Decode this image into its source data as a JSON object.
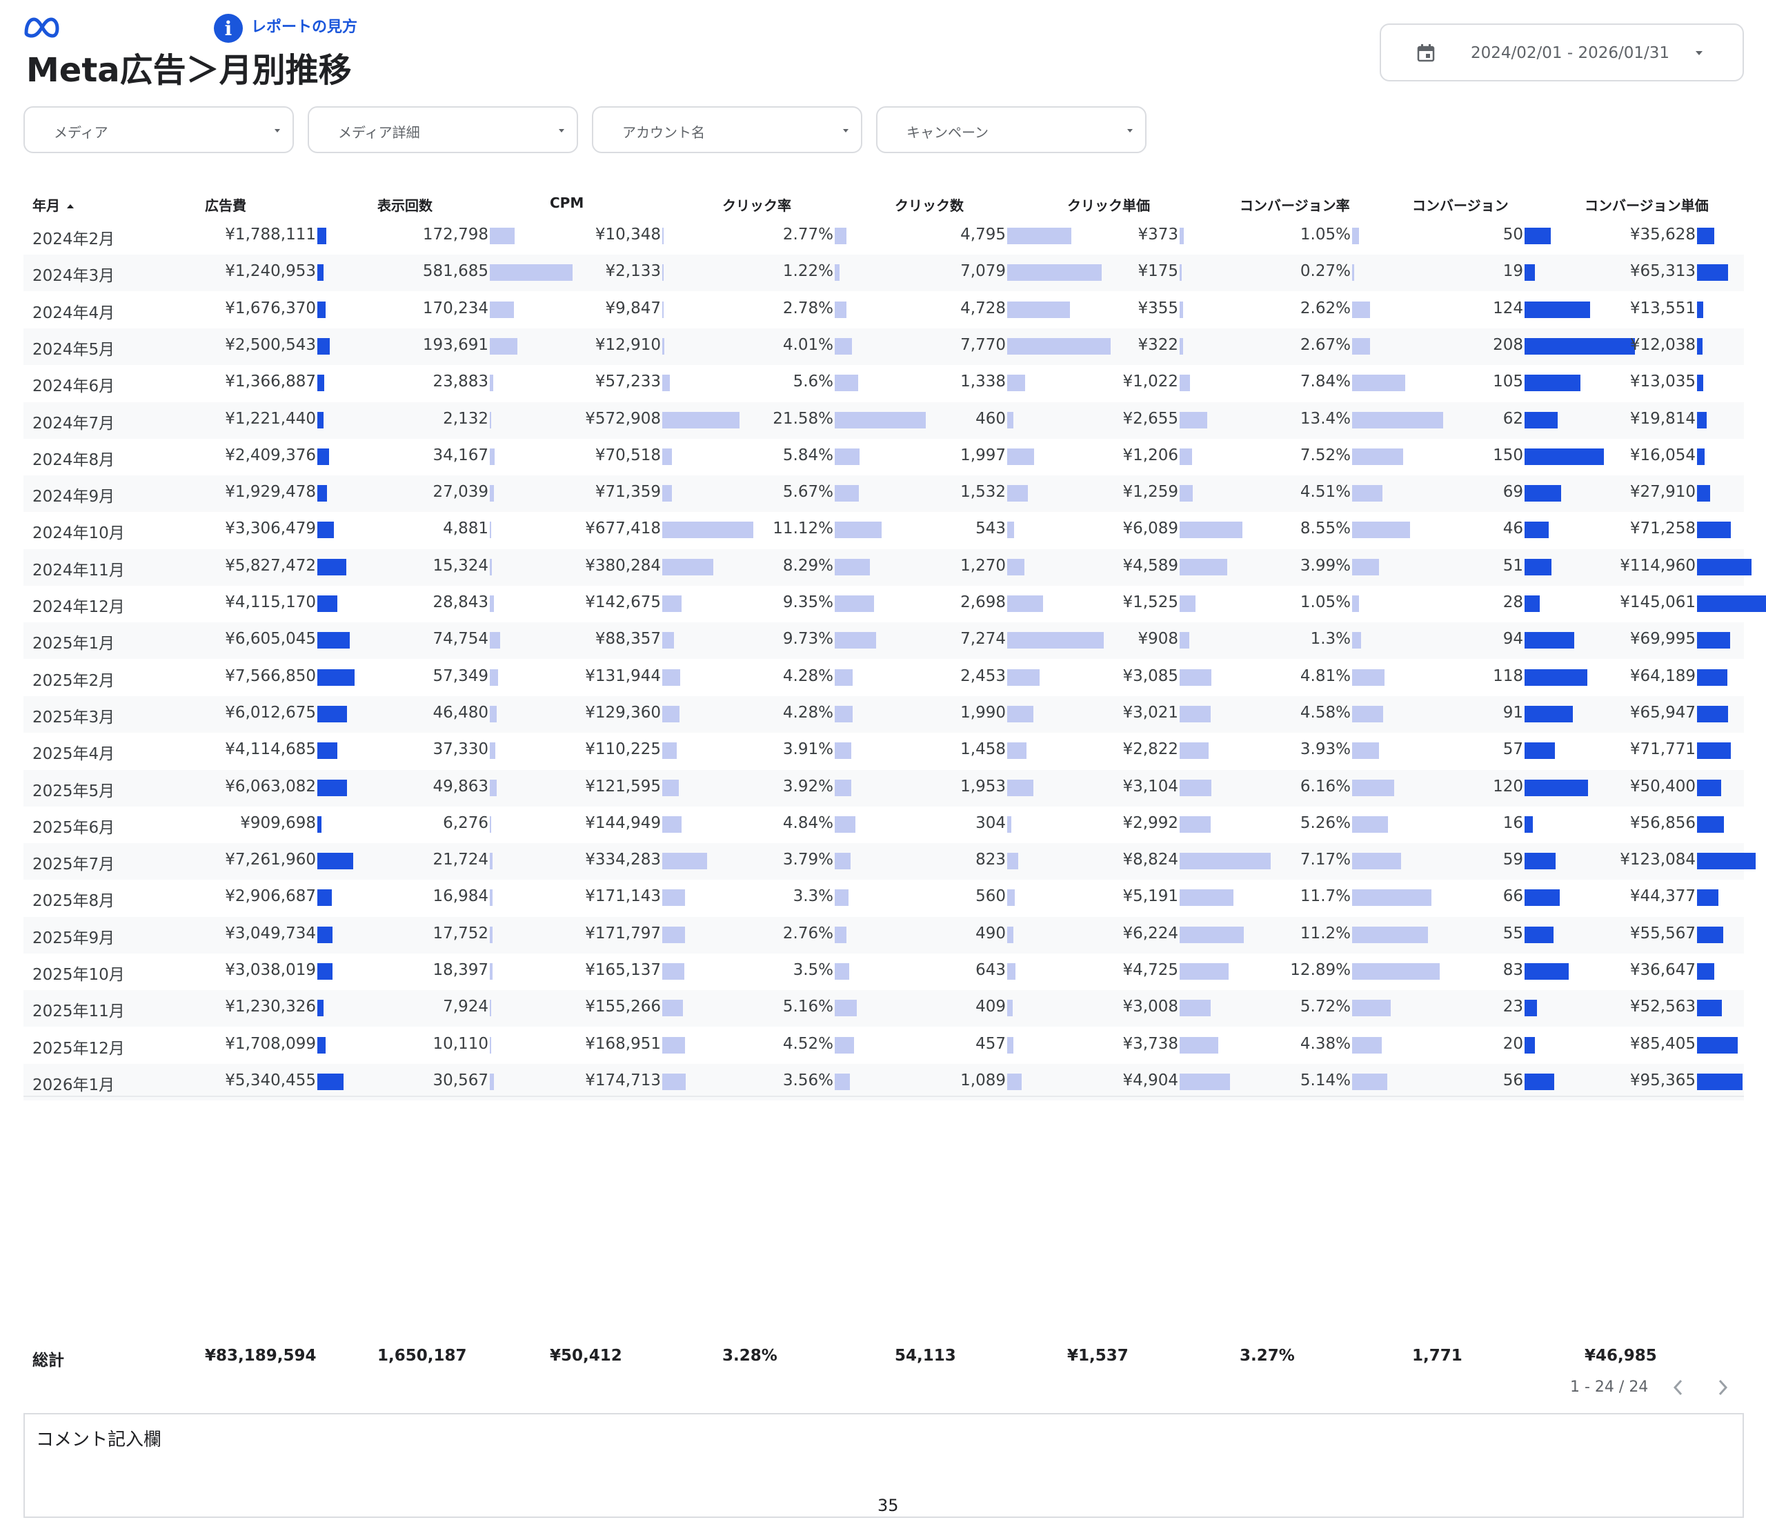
{
  "header": {
    "title": "Meta広告＞月別推移",
    "help_label": "レポートの見方",
    "help_icon": "info-icon",
    "logo": "meta-logo"
  },
  "date_range": {
    "value": "2024/02/01 - 2026/01/31",
    "icon": "calendar-icon"
  },
  "filters": [
    {
      "label": "メディア"
    },
    {
      "label": "メディア詳細"
    },
    {
      "label": "アカウント名"
    },
    {
      "label": "キャンペーン"
    }
  ],
  "table": {
    "columns": [
      "年月",
      "広告費",
      "表示回数",
      "CPM",
      "クリック率",
      "クリック数",
      "クリック単価",
      "コンバージョン率",
      "コンバージョン",
      "コンバージョン単価"
    ],
    "sort": {
      "column": "年月",
      "direction": "ascending"
    },
    "bar_colors": {
      "light": "#c1caf2",
      "dark": "#1a4fe0"
    },
    "rows": [
      [
        "2024年2月",
        "¥1,788,111",
        "172,798",
        "¥10,348",
        "2.77%",
        "4,795",
        "¥373",
        "1.05%",
        "50",
        "¥35,628"
      ],
      [
        "2024年3月",
        "¥1,240,953",
        "581,685",
        "¥2,133",
        "1.22%",
        "7,079",
        "¥175",
        "0.27%",
        "19",
        "¥65,313"
      ],
      [
        "2024年4月",
        "¥1,676,370",
        "170,234",
        "¥9,847",
        "2.78%",
        "4,728",
        "¥355",
        "2.62%",
        "124",
        "¥13,551"
      ],
      [
        "2024年5月",
        "¥2,500,543",
        "193,691",
        "¥12,910",
        "4.01%",
        "7,770",
        "¥322",
        "2.67%",
        "208",
        "¥12,038"
      ],
      [
        "2024年6月",
        "¥1,366,887",
        "23,883",
        "¥57,233",
        "5.6%",
        "1,338",
        "¥1,022",
        "7.84%",
        "105",
        "¥13,035"
      ],
      [
        "2024年7月",
        "¥1,221,440",
        "2,132",
        "¥572,908",
        "21.58%",
        "460",
        "¥2,655",
        "13.4%",
        "62",
        "¥19,814"
      ],
      [
        "2024年8月",
        "¥2,409,376",
        "34,167",
        "¥70,518",
        "5.84%",
        "1,997",
        "¥1,206",
        "7.52%",
        "150",
        "¥16,054"
      ],
      [
        "2024年9月",
        "¥1,929,478",
        "27,039",
        "¥71,359",
        "5.67%",
        "1,532",
        "¥1,259",
        "4.51%",
        "69",
        "¥27,910"
      ],
      [
        "2024年10月",
        "¥3,306,479",
        "4,881",
        "¥677,418",
        "11.12%",
        "543",
        "¥6,089",
        "8.55%",
        "46",
        "¥71,258"
      ],
      [
        "2024年11月",
        "¥5,827,472",
        "15,324",
        "¥380,284",
        "8.29%",
        "1,270",
        "¥4,589",
        "3.99%",
        "51",
        "¥114,960"
      ],
      [
        "2024年12月",
        "¥4,115,170",
        "28,843",
        "¥142,675",
        "9.35%",
        "2,698",
        "¥1,525",
        "1.05%",
        "28",
        "¥145,061"
      ],
      [
        "2025年1月",
        "¥6,605,045",
        "74,754",
        "¥88,357",
        "9.73%",
        "7,274",
        "¥908",
        "1.3%",
        "94",
        "¥69,995"
      ],
      [
        "2025年2月",
        "¥7,566,850",
        "57,349",
        "¥131,944",
        "4.28%",
        "2,453",
        "¥3,085",
        "4.81%",
        "118",
        "¥64,189"
      ],
      [
        "2025年3月",
        "¥6,012,675",
        "46,480",
        "¥129,360",
        "4.28%",
        "1,990",
        "¥3,021",
        "4.58%",
        "91",
        "¥65,947"
      ],
      [
        "2025年4月",
        "¥4,114,685",
        "37,330",
        "¥110,225",
        "3.91%",
        "1,458",
        "¥2,822",
        "3.93%",
        "57",
        "¥71,771"
      ],
      [
        "2025年5月",
        "¥6,063,082",
        "49,863",
        "¥121,595",
        "3.92%",
        "1,953",
        "¥3,104",
        "6.16%",
        "120",
        "¥50,400"
      ],
      [
        "2025年6月",
        "¥909,698",
        "6,276",
        "¥144,949",
        "4.84%",
        "304",
        "¥2,992",
        "5.26%",
        "16",
        "¥56,856"
      ],
      [
        "2025年7月",
        "¥7,261,960",
        "21,724",
        "¥334,283",
        "3.79%",
        "823",
        "¥8,824",
        "7.17%",
        "59",
        "¥123,084"
      ],
      [
        "2025年8月",
        "¥2,906,687",
        "16,984",
        "¥171,143",
        "3.3%",
        "560",
        "¥5,191",
        "11.7%",
        "66",
        "¥44,377"
      ],
      [
        "2025年9月",
        "¥3,049,734",
        "17,752",
        "¥171,797",
        "2.76%",
        "490",
        "¥6,224",
        "11.2%",
        "55",
        "¥55,567"
      ],
      [
        "2025年10月",
        "¥3,038,019",
        "18,397",
        "¥165,137",
        "3.5%",
        "643",
        "¥4,725",
        "12.89%",
        "83",
        "¥36,647"
      ],
      [
        "2025年11月",
        "¥1,230,326",
        "7,924",
        "¥155,266",
        "5.16%",
        "409",
        "¥3,008",
        "5.72%",
        "23",
        "¥52,563"
      ],
      [
        "2025年12月",
        "¥1,708,099",
        "10,110",
        "¥168,951",
        "4.52%",
        "457",
        "¥3,738",
        "4.38%",
        "20",
        "¥85,405"
      ],
      [
        "2026年1月",
        "¥5,340,455",
        "30,567",
        "¥174,713",
        "3.56%",
        "1,089",
        "¥4,904",
        "5.14%",
        "56",
        "¥95,365"
      ]
    ],
    "totals": {
      "label": "総計",
      "values": [
        "¥83,189,594",
        "1,650,187",
        "¥50,412",
        "3.28%",
        "54,113",
        "¥1,537",
        "3.27%",
        "1,771",
        "¥46,985"
      ]
    },
    "pagination": {
      "text": "1 - 24 / 24",
      "prev_icon": "chevron-left-icon",
      "next_icon": "chevron-right-icon"
    }
  },
  "comment": {
    "label": "コメント記入欄",
    "page_number": "35"
  }
}
